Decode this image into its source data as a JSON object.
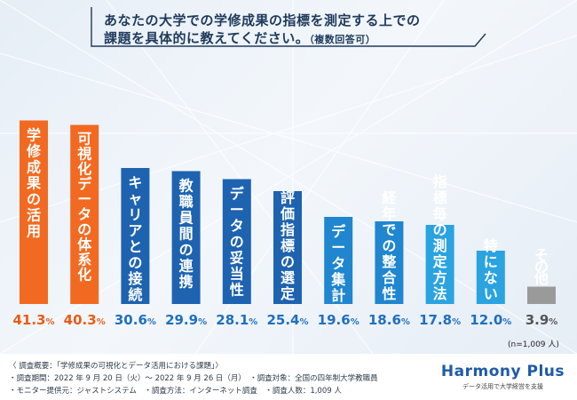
{
  "title": {
    "line1": "あなたの大学での学修成果の指標を測定する上での",
    "line2": "課題を具体的に教えてください。",
    "line2_note": "（複数回答可）"
  },
  "sample_note": "(n=1,009 人)",
  "footer": {
    "line1": "〈 調査概要：「学修成果の可視化とデータ活用における課題」〉",
    "line2": "・調査期間：2022 年 9 月 20 日（火）～ 2022 年 9 月 26 日（月）　・調査対象：全国の四年制大学教職員",
    "line3": "・モニター提供元：ジャストシステム　・調査方法：インターネット調査　・調査人数：1,009 人"
  },
  "brand": {
    "name": "Harmony Plus",
    "tagline": "データ活用で大学経営を支援"
  },
  "colors": {
    "orange": "#f26a21",
    "blue_dark": "#1e63b0",
    "blue_mid": "#1f86cf",
    "blue_light": "#2aa3e0",
    "gray": "#9a9a9a",
    "value_orange": "#e85c17",
    "value_blue": "#1f6fbf",
    "value_gray": "#555555"
  },
  "chart_data": {
    "type": "bar",
    "title": "あなたの大学での学修成果の指標を測定する上での課題を具体的に教えてください。（複数回答可）",
    "unit": "%",
    "ylim": [
      0,
      45
    ],
    "categories": [
      "学修成果の活用",
      "可視化データの体系化",
      "キャリアとの接続",
      "教職員間の連携",
      "データの妥当性",
      "評価指標の選定",
      "データ集計",
      "経年での整合性",
      "指標毎の測定方法",
      "特にない",
      "その他"
    ],
    "values": [
      41.3,
      40.3,
      30.6,
      29.9,
      28.1,
      25.4,
      19.6,
      18.6,
      17.8,
      12.0,
      3.9
    ],
    "value_labels": [
      "41.3%",
      "40.3%",
      "30.6%",
      "29.9%",
      "28.1%",
      "25.4%",
      "19.6%",
      "18.6%",
      "17.8%",
      "12.0%",
      "3.9%"
    ],
    "color_groups": [
      "orange",
      "orange",
      "blue_dark",
      "blue_dark",
      "blue_dark",
      "blue_dark",
      "blue_mid",
      "blue_mid",
      "blue_light",
      "blue_light",
      "gray"
    ]
  }
}
